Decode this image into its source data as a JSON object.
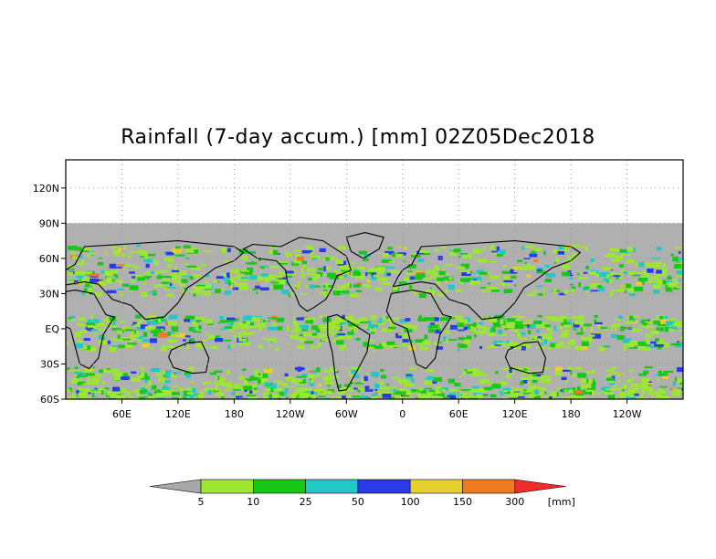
{
  "title": "Rainfall (7-day accum.) [mm] 02Z05Dec2018",
  "colors": {
    "no_data": "#b0b0b0",
    "land_border": "#000000",
    "grid": "#9a9a9a",
    "plot_border": "#000000"
  },
  "y_axis": {
    "ticks": [
      {
        "lat": 120,
        "label": "120N"
      },
      {
        "lat": 90,
        "label": "90N"
      },
      {
        "lat": 60,
        "label": "60N"
      },
      {
        "lat": 30,
        "label": "30N"
      },
      {
        "lat": 0,
        "label": "EQ"
      },
      {
        "lat": -30,
        "label": "30S"
      },
      {
        "lat": -60,
        "label": "60S"
      }
    ]
  },
  "x_axis": {
    "ticks": [
      {
        "lon": 60,
        "label": "60E"
      },
      {
        "lon": 120,
        "label": "120E"
      },
      {
        "lon": 180,
        "label": "180"
      },
      {
        "lon": 240,
        "label": "120W"
      },
      {
        "lon": 300,
        "label": "60W"
      },
      {
        "lon": 360,
        "label": "0"
      },
      {
        "lon": 420,
        "label": "60E"
      },
      {
        "lon": 480,
        "label": "120E"
      },
      {
        "lon": 540,
        "label": "180"
      },
      {
        "lon": 600,
        "label": "120W"
      }
    ]
  },
  "legend": {
    "unit": "[mm]",
    "under_color": "#a8a8a8",
    "over_color": "#ef2c2c",
    "bins": [
      {
        "color": "#9de632"
      },
      {
        "color": "#18c818"
      },
      {
        "color": "#22c8c8"
      },
      {
        "color": "#2a3ae8"
      },
      {
        "color": "#e6d030"
      },
      {
        "color": "#ee7a22"
      }
    ],
    "boundaries": [
      "5",
      "10",
      "25",
      "50",
      "100",
      "150",
      "300"
    ]
  }
}
